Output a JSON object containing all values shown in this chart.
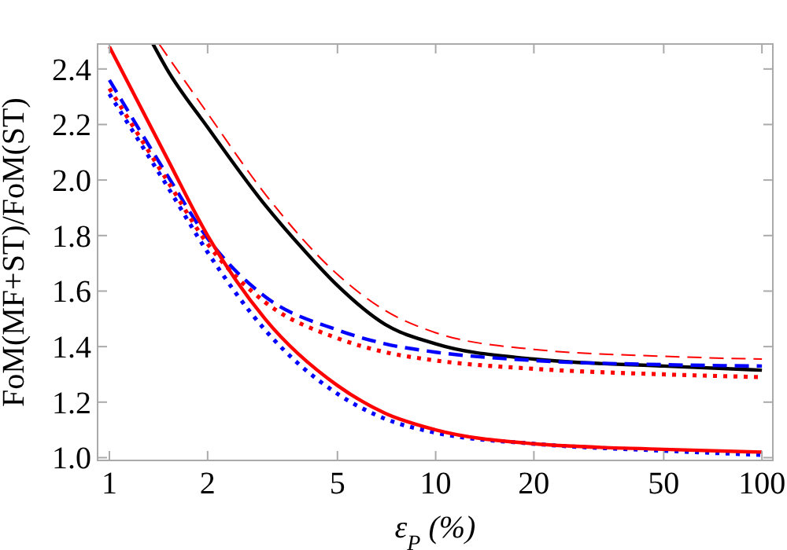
{
  "chart_data": {
    "type": "line",
    "xlabel": "ε$_{P}$ (%)",
    "ylabel": "FoM(MF+ST)/FoM(ST)",
    "log": "x",
    "grid": false,
    "xlim": [
      0.92,
      108
    ],
    "xticks": [
      1,
      2,
      5,
      10,
      20,
      50,
      100
    ],
    "ylim": [
      0.99,
      2.49
    ],
    "yticks": [
      {
        "value": 1,
        "label": "1.0"
      },
      {
        "value": 1.2,
        "label": "1.2"
      },
      {
        "value": 1.4,
        "label": "1.4"
      },
      {
        "value": 1.6,
        "label": "1.6"
      },
      {
        "value": 1.8,
        "label": "1.8"
      },
      {
        "value": 2,
        "label": "2.0"
      },
      {
        "value": 2.2,
        "label": "2.2"
      },
      {
        "value": 2.4,
        "label": "2.4"
      }
    ],
    "series": [
      {
        "color": "#ff0000",
        "line_style": "dashed",
        "x": [
          1.42,
          2,
          3,
          5,
          7,
          10,
          20,
          50,
          100
        ],
        "values": [
          2.49,
          2.24,
          1.95,
          1.66,
          1.53,
          1.45,
          1.39,
          1.365,
          1.355
        ]
      },
      {
        "color": "#000000",
        "line_style": "solid",
        "x": [
          1.36,
          1.5,
          2,
          3,
          4,
          5,
          7,
          10,
          20,
          50,
          100
        ],
        "values": [
          2.49,
          2.4,
          2.19,
          1.91,
          1.74,
          1.62,
          1.48,
          1.41,
          1.355,
          1.33,
          1.315
        ]
      },
      {
        "color": "#0000ff",
        "line_style": "dashed",
        "x": [
          1,
          1.5,
          2,
          3,
          5,
          7,
          10,
          20,
          50,
          100
        ],
        "values": [
          2.36,
          2.02,
          1.79,
          1.58,
          1.46,
          1.41,
          1.38,
          1.35,
          1.335,
          1.33
        ]
      },
      {
        "color": "#ff0000",
        "line_style": "dotted",
        "x": [
          1,
          1.5,
          2,
          3,
          5,
          7,
          10,
          20,
          50,
          100
        ],
        "values": [
          2.33,
          2.0,
          1.77,
          1.56,
          1.43,
          1.38,
          1.35,
          1.32,
          1.3,
          1.29
        ]
      },
      {
        "color": "#0000ff",
        "line_style": "dotted",
        "x": [
          1,
          1.5,
          2,
          3,
          5,
          7,
          10,
          20,
          50,
          100
        ],
        "values": [
          2.31,
          1.98,
          1.74,
          1.46,
          1.23,
          1.14,
          1.09,
          1.05,
          1.025,
          1.01
        ]
      },
      {
        "color": "#ff0000",
        "line_style": "solid",
        "x": [
          1,
          1.5,
          2,
          3,
          5,
          7,
          10,
          20,
          50,
          100
        ],
        "values": [
          2.48,
          2.08,
          1.8,
          1.5,
          1.26,
          1.16,
          1.1,
          1.05,
          1.03,
          1.02
        ]
      }
    ]
  }
}
